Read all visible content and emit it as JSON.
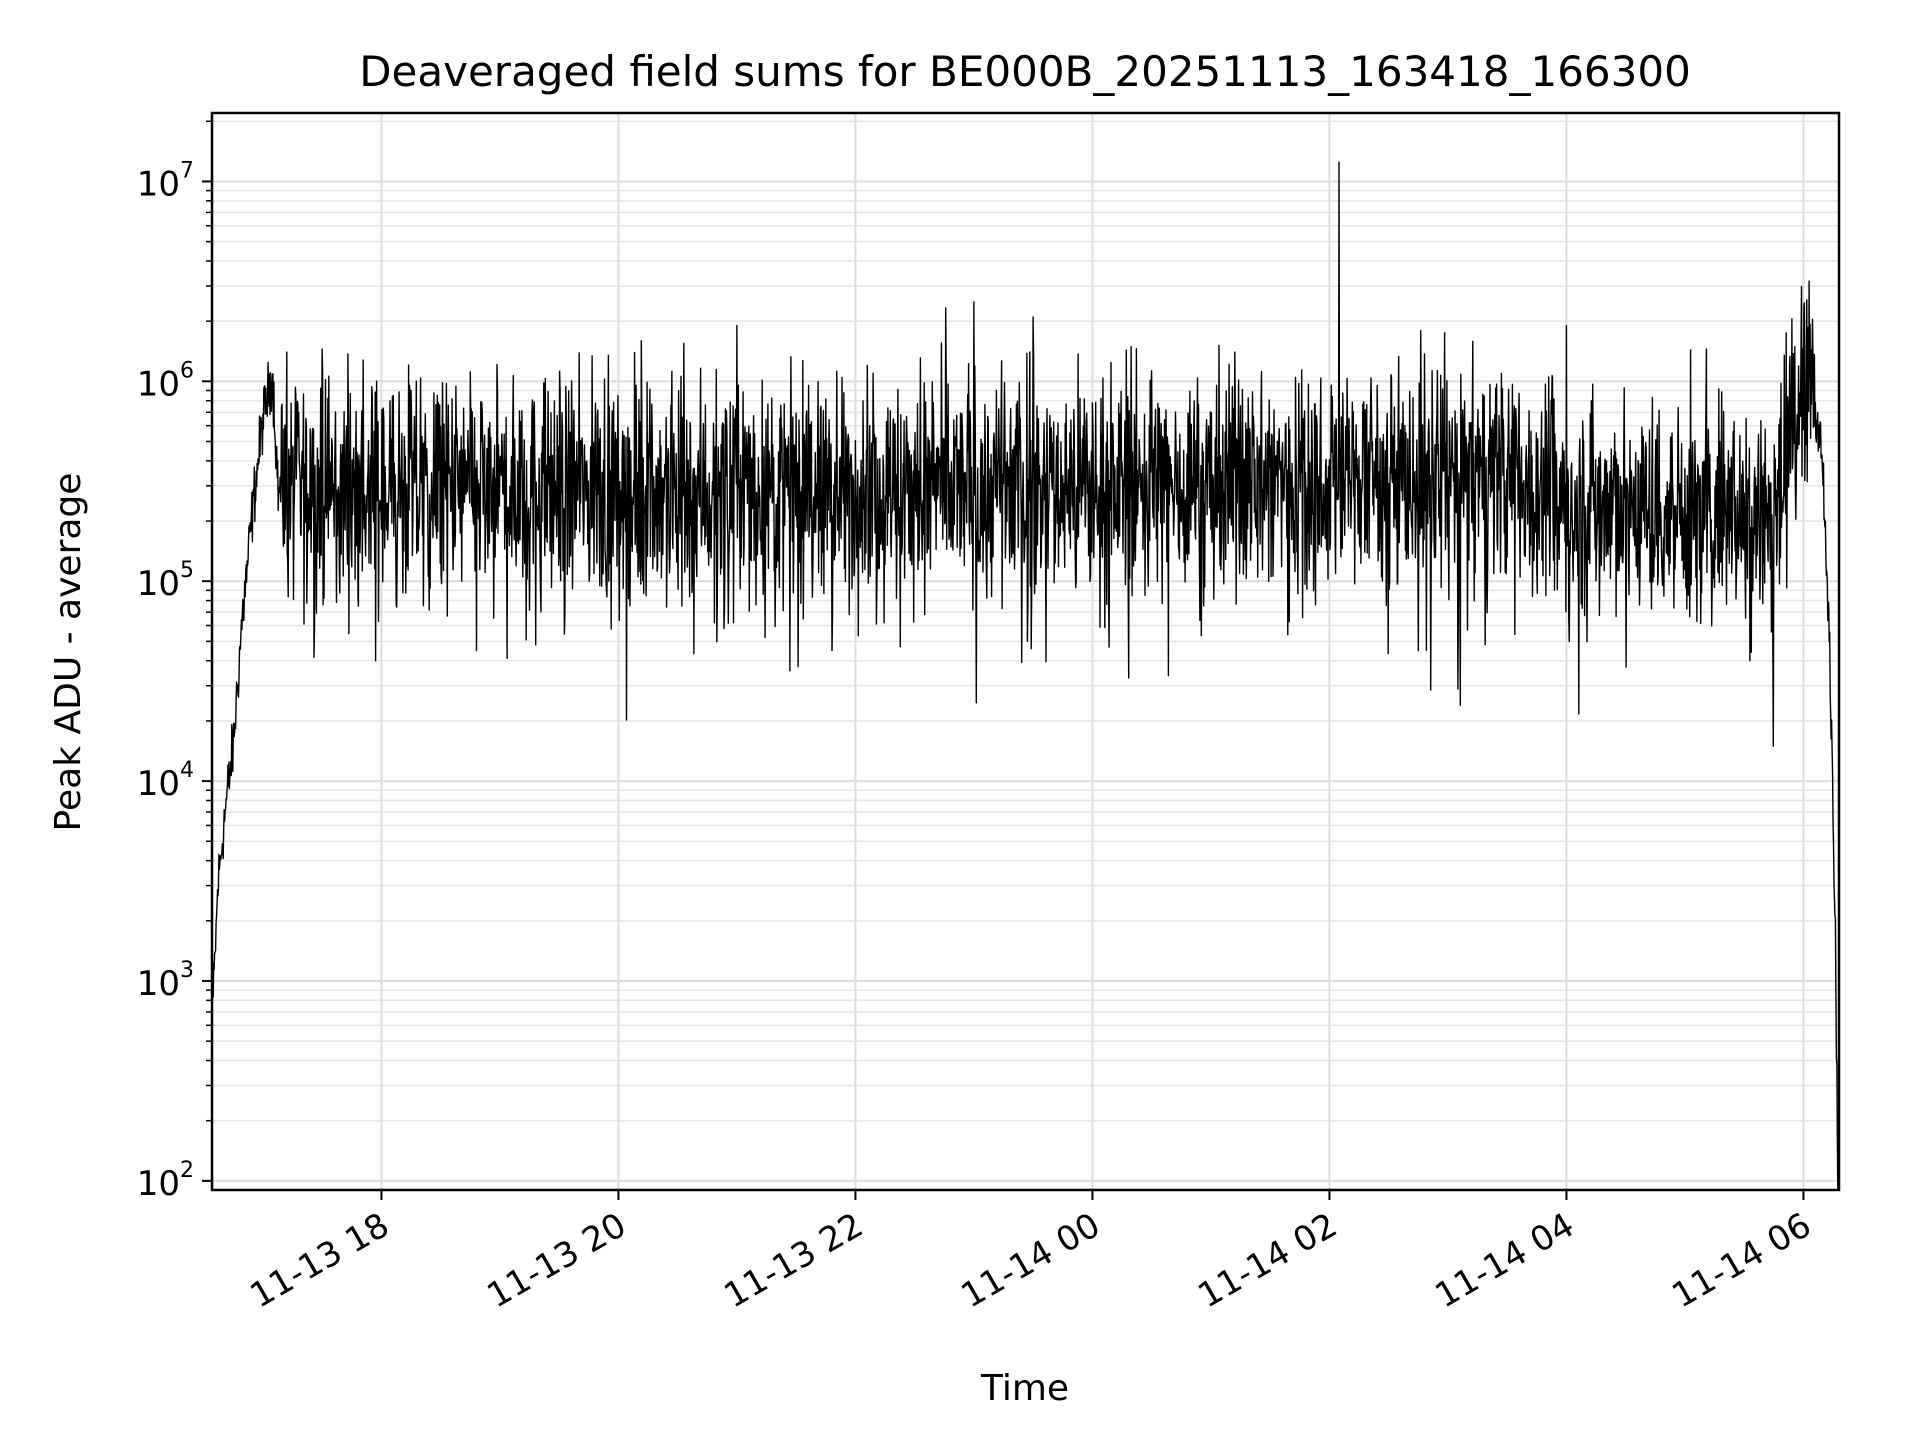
{
  "chart_data": {
    "type": "line",
    "title": "Deaveraged field sums for BE000B_20251113_163418_166300",
    "xlabel": "Time",
    "ylabel": "Peak ADU - average",
    "yscale": "log",
    "ylim": [
      90,
      22000000
    ],
    "xlim_hours": [
      16.57,
      30.3
    ],
    "grid": true,
    "x_ticks": [
      {
        "label": "11-13 18",
        "hour": 18
      },
      {
        "label": "11-13 20",
        "hour": 20
      },
      {
        "label": "11-13 22",
        "hour": 22
      },
      {
        "label": "11-14 00",
        "hour": 24
      },
      {
        "label": "11-14 02",
        "hour": 26
      },
      {
        "label": "11-14 04",
        "hour": 28
      },
      {
        "label": "11-14 06",
        "hour": 30
      }
    ],
    "y_ticks": [
      {
        "base": "10",
        "exp": "2",
        "value": 100
      },
      {
        "base": "10",
        "exp": "3",
        "value": 1000
      },
      {
        "base": "10",
        "exp": "4",
        "value": 10000
      },
      {
        "base": "10",
        "exp": "5",
        "value": 100000
      },
      {
        "base": "10",
        "exp": "6",
        "value": 1000000
      },
      {
        "base": "10",
        "exp": "7",
        "value": 10000000
      }
    ],
    "series": [
      {
        "name": "Deaveraged field sum",
        "color": "#000000",
        "envelope": [
          {
            "hour": 16.58,
            "value": 800
          },
          {
            "hour": 16.62,
            "value": 3000
          },
          {
            "hour": 16.68,
            "value": 7000
          },
          {
            "hour": 16.75,
            "value": 15000
          },
          {
            "hour": 16.82,
            "value": 60000
          },
          {
            "hour": 16.92,
            "value": 250000
          },
          {
            "hour": 17.0,
            "value": 650000
          },
          {
            "hour": 17.08,
            "value": 1100000
          },
          {
            "hour": 17.13,
            "value": 280000
          },
          {
            "hour": 18.0,
            "value": 280000
          },
          {
            "hour": 20.0,
            "value": 290000
          },
          {
            "hour": 22.0,
            "value": 280000
          },
          {
            "hour": 24.0,
            "value": 300000
          },
          {
            "hour": 26.0,
            "value": 330000
          },
          {
            "hour": 27.5,
            "value": 330000
          },
          {
            "hour": 28.0,
            "value": 250000
          },
          {
            "hour": 29.0,
            "value": 230000
          },
          {
            "hour": 29.8,
            "value": 230000
          },
          {
            "hour": 29.9,
            "value": 600000
          },
          {
            "hour": 30.05,
            "value": 1100000
          },
          {
            "hour": 30.15,
            "value": 500000
          },
          {
            "hour": 30.22,
            "value": 50000
          },
          {
            "hour": 30.27,
            "value": 1500
          },
          {
            "hour": 30.29,
            "value": 100
          }
        ],
        "spikes": [
          {
            "hour": 26.08,
            "value": 12500000
          },
          {
            "hour": 23.0,
            "value": 2500000
          },
          {
            "hour": 23.5,
            "value": 2100000
          },
          {
            "hour": 21.0,
            "value": 1900000
          },
          {
            "hour": 28.0,
            "value": 1900000
          },
          {
            "hour": 20.55,
            "value": 1550000
          },
          {
            "hour": 29.18,
            "value": 1450000
          },
          {
            "hour": 17.5,
            "value": 1450000
          },
          {
            "hour": 17.2,
            "value": 1400000
          },
          {
            "hour": 22.1,
            "value": 1200000
          },
          {
            "hour": 17.95,
            "value": 40000
          },
          {
            "hour": 18.8,
            "value": 45000
          },
          {
            "hour": 19.3,
            "value": 48000
          },
          {
            "hour": 21.8,
            "value": 45000
          },
          {
            "hour": 23.45,
            "value": 50000
          },
          {
            "hour": 26.75,
            "value": 45000
          },
          {
            "hour": 29.55,
            "value": 40000
          }
        ]
      }
    ]
  }
}
